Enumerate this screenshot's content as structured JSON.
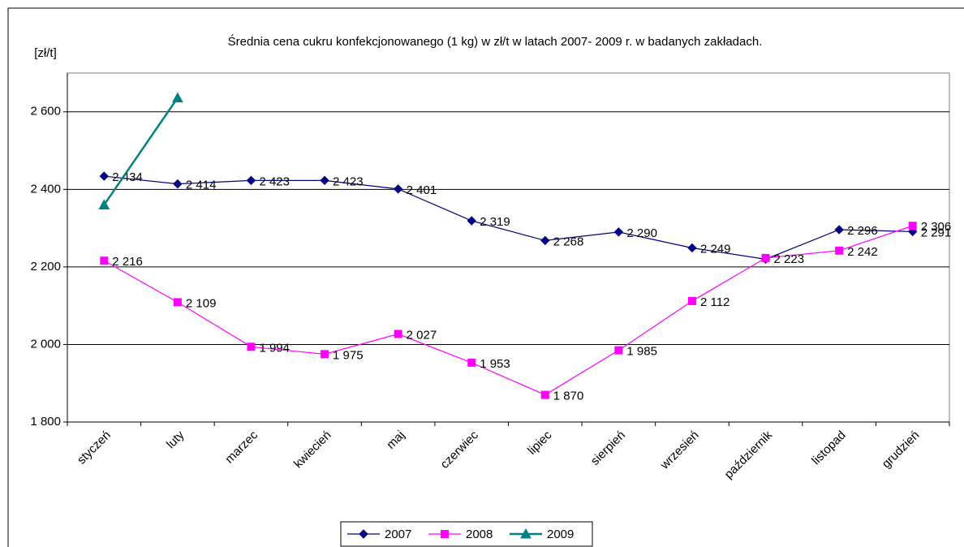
{
  "chart_data": {
    "type": "line",
    "title": "Średnia cena cukru konfekcjonowanego (1 kg) w zł/t w latach 2007- 2009 r. w badanych zakładach.",
    "y_label": "[zł/t]",
    "categories": [
      "styczeń",
      "luty",
      "marzec",
      "kwiecień",
      "maj",
      "czerwiec",
      "lipiec",
      "sierpień",
      "wrzesień",
      "październik",
      "listopad",
      "grudzień"
    ],
    "series": [
      {
        "name": "2007",
        "color": "#000080",
        "marker": "diamond",
        "values": [
          2434,
          2414,
          2423,
          2423,
          2401,
          2319,
          2268,
          2290,
          2249,
          2220,
          2296,
          2291
        ],
        "value_labels": [
          "2 434",
          "2 414",
          "2 423",
          "2 423",
          "2 401",
          "2 319",
          "2 268",
          "2 290",
          "2 249",
          null,
          "2 296",
          "2 291"
        ]
      },
      {
        "name": "2008",
        "color": "#ff00ff",
        "marker": "square",
        "values": [
          2216,
          2109,
          1994,
          1975,
          2027,
          1953,
          1870,
          1985,
          2112,
          2223,
          2242,
          2306
        ],
        "value_labels": [
          "2 216",
          "2 109",
          "1 994",
          "1 975",
          "2 027",
          "1 953",
          "1 870",
          "1 985",
          "2 112",
          "2 223",
          "2 242",
          "2 306"
        ]
      },
      {
        "name": "2009",
        "color": "#008080",
        "marker": "triangle",
        "values": [
          2360,
          2636,
          null,
          null,
          null,
          null,
          null,
          null,
          null,
          null,
          null,
          null
        ]
      }
    ],
    "ylim": [
      1800,
      2700
    ],
    "yticks": [
      {
        "value": 1800,
        "label": "1 800"
      },
      {
        "value": 2000,
        "label": "2 000"
      },
      {
        "value": 2200,
        "label": "2 200"
      },
      {
        "value": 2400,
        "label": "2 400"
      },
      {
        "value": 2600,
        "label": "2 600"
      }
    ],
    "grid": true,
    "legend": "bottom"
  }
}
